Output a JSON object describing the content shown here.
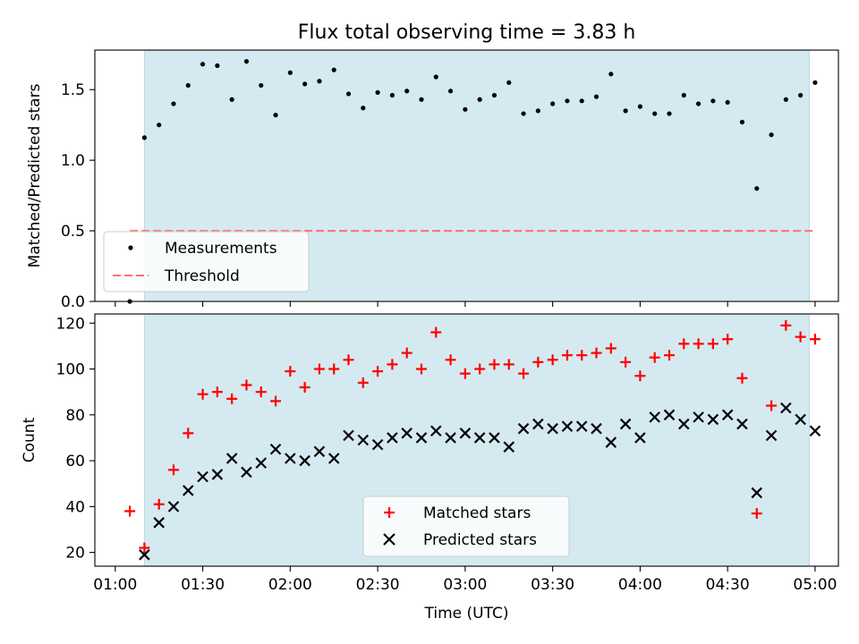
{
  "chart_data": [
    {
      "type": "scatter",
      "title": "Flux total observing time = 3.83 h",
      "xlabel": "",
      "ylabel": "Matched/Predicted stars",
      "ylim": [
        0,
        1.78
      ],
      "yticks": [
        "0.0",
        "0.5",
        "1.0",
        "1.5"
      ],
      "ytick_values": [
        0,
        0.5,
        1.0,
        1.5
      ],
      "shaded_span": [
        "01:10",
        "04:58"
      ],
      "shade_color": "#d5eaf0",
      "legend_position": "lower-left",
      "series": [
        {
          "name": "Measurements",
          "marker": "dot",
          "color": "#000000",
          "x": [
            "01:05",
            "01:10",
            "01:15",
            "01:20",
            "01:25",
            "01:30",
            "01:35",
            "01:40",
            "01:45",
            "01:50",
            "01:55",
            "02:00",
            "02:05",
            "02:10",
            "02:15",
            "02:20",
            "02:25",
            "02:30",
            "02:35",
            "02:40",
            "02:45",
            "02:50",
            "02:55",
            "03:00",
            "03:05",
            "03:10",
            "03:15",
            "03:20",
            "03:25",
            "03:30",
            "03:35",
            "03:40",
            "03:45",
            "03:50",
            "03:55",
            "04:00",
            "04:05",
            "04:10",
            "04:15",
            "04:20",
            "04:25",
            "04:30",
            "04:35",
            "04:40",
            "04:45",
            "04:50",
            "04:55",
            "05:00"
          ],
          "y": [
            0.0,
            1.16,
            1.25,
            1.4,
            1.53,
            1.68,
            1.67,
            1.43,
            1.7,
            1.53,
            1.32,
            1.62,
            1.54,
            1.56,
            1.64,
            1.47,
            1.37,
            1.48,
            1.46,
            1.49,
            1.43,
            1.59,
            1.49,
            1.36,
            1.43,
            1.46,
            1.55,
            1.33,
            1.35,
            1.4,
            1.42,
            1.42,
            1.45,
            1.61,
            1.35,
            1.38,
            1.33,
            1.33,
            1.46,
            1.4,
            1.42,
            1.41,
            1.27,
            0.8,
            1.18,
            1.43,
            1.46,
            1.55
          ]
        },
        {
          "name": "Threshold",
          "marker": "dashed-line",
          "color": "#ff7070",
          "x": [
            "01:05",
            "05:00"
          ],
          "y": [
            0.5,
            0.5
          ]
        }
      ]
    },
    {
      "type": "scatter",
      "title": "",
      "xlabel": "Time (UTC)",
      "ylabel": "Count",
      "ylim": [
        14,
        124
      ],
      "yticks": [
        "20",
        "40",
        "60",
        "80",
        "100",
        "120"
      ],
      "ytick_values": [
        20,
        40,
        60,
        80,
        100,
        120
      ],
      "xticks": [
        "01:00",
        "01:30",
        "02:00",
        "02:30",
        "03:00",
        "03:30",
        "04:00",
        "04:30",
        "05:00"
      ],
      "xlim": [
        "00:53",
        "05:08"
      ],
      "shaded_span": [
        "01:10",
        "04:58"
      ],
      "shade_color": "#d5eaf0",
      "legend_position": "lower-center",
      "series": [
        {
          "name": "Matched stars",
          "marker": "plus",
          "color": "#ff0000",
          "x": [
            "01:05",
            "01:10",
            "01:15",
            "01:20",
            "01:25",
            "01:30",
            "01:35",
            "01:40",
            "01:45",
            "01:50",
            "01:55",
            "02:00",
            "02:05",
            "02:10",
            "02:15",
            "02:20",
            "02:25",
            "02:30",
            "02:35",
            "02:40",
            "02:45",
            "02:50",
            "02:55",
            "03:00",
            "03:05",
            "03:10",
            "03:15",
            "03:20",
            "03:25",
            "03:30",
            "03:35",
            "03:40",
            "03:45",
            "03:50",
            "03:55",
            "04:00",
            "04:05",
            "04:10",
            "04:15",
            "04:20",
            "04:25",
            "04:30",
            "04:35",
            "04:40",
            "04:45",
            "04:50",
            "04:55",
            "05:00"
          ],
          "y": [
            38,
            22,
            41,
            56,
            72,
            89,
            90,
            87,
            93,
            90,
            86,
            99,
            92,
            100,
            100,
            104,
            94,
            99,
            102,
            107,
            100,
            116,
            104,
            98,
            100,
            102,
            102,
            98,
            103,
            104,
            106,
            106,
            107,
            109,
            103,
            97,
            105,
            106,
            111,
            111,
            111,
            113,
            96,
            37,
            84,
            119,
            114,
            113
          ]
        },
        {
          "name": "Predicted stars",
          "marker": "x",
          "color": "#000000",
          "x": [
            "01:10",
            "01:15",
            "01:20",
            "01:25",
            "01:30",
            "01:35",
            "01:40",
            "01:45",
            "01:50",
            "01:55",
            "02:00",
            "02:05",
            "02:10",
            "02:15",
            "02:20",
            "02:25",
            "02:30",
            "02:35",
            "02:40",
            "02:45",
            "02:50",
            "02:55",
            "03:00",
            "03:05",
            "03:10",
            "03:15",
            "03:20",
            "03:25",
            "03:30",
            "03:35",
            "03:40",
            "03:45",
            "03:50",
            "03:55",
            "04:00",
            "04:05",
            "04:10",
            "04:15",
            "04:20",
            "04:25",
            "04:30",
            "04:35",
            "04:40",
            "04:45",
            "04:50",
            "04:55",
            "05:00"
          ],
          "y": [
            19,
            33,
            40,
            47,
            53,
            54,
            61,
            55,
            59,
            65,
            61,
            60,
            64,
            61,
            71,
            69,
            67,
            70,
            72,
            70,
            73,
            70,
            72,
            70,
            70,
            66,
            74,
            76,
            74,
            75,
            75,
            74,
            68,
            76,
            70,
            79,
            80,
            76,
            79,
            78,
            80,
            76,
            46,
            71,
            83,
            78,
            73
          ]
        }
      ]
    }
  ]
}
